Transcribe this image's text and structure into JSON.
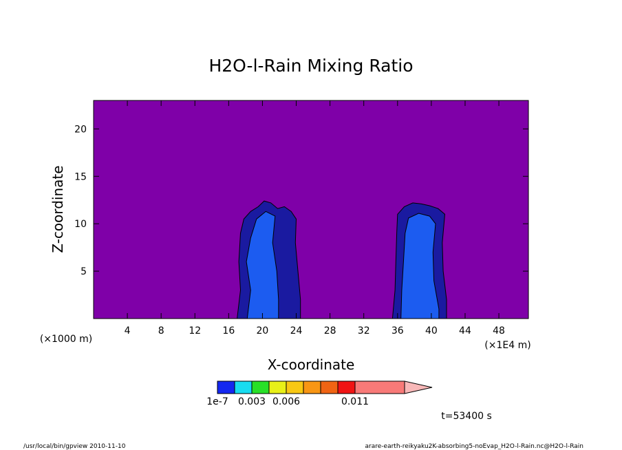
{
  "chart_data": {
    "type": "heatmap",
    "title": "H2O-l-Rain Mixing Ratio",
    "xlabel": "X-coordinate",
    "ylabel": "Z-coordinate",
    "x_unit_left": "(×1000 m)",
    "x_unit_right": "(×1E4 m)",
    "xlim": [
      0,
      51.5
    ],
    "ylim": [
      0,
      23
    ],
    "x_ticks": [
      4,
      8,
      12,
      16,
      20,
      24,
      28,
      32,
      36,
      40,
      44,
      48
    ],
    "y_ticks": [
      5,
      10,
      15,
      20
    ],
    "background_color": "#7f00a8",
    "regions": [
      {
        "name": "cell-1",
        "levels": [
          {
            "color": "#1a1aa0",
            "points": [
              [
                17,
                0
              ],
              [
                17.4,
                3
              ],
              [
                17.2,
                6
              ],
              [
                17.4,
                9
              ],
              [
                17.8,
                10.5
              ],
              [
                18.6,
                11.3
              ],
              [
                19.5,
                11.8
              ],
              [
                20.2,
                12.4
              ],
              [
                21,
                12.2
              ],
              [
                21.8,
                11.6
              ],
              [
                22.6,
                11.8
              ],
              [
                23.4,
                11.3
              ],
              [
                24,
                10.5
              ],
              [
                23.9,
                8
              ],
              [
                24.2,
                5
              ],
              [
                24.5,
                2
              ],
              [
                24.5,
                0
              ]
            ]
          },
          {
            "color": "#1c5cf0",
            "points": [
              [
                18.2,
                0
              ],
              [
                18.6,
                3
              ],
              [
                18.1,
                6
              ],
              [
                18.6,
                8.5
              ],
              [
                19.3,
                10.5
              ],
              [
                20.4,
                11.3
              ],
              [
                21.5,
                10.8
              ],
              [
                21.2,
                8
              ],
              [
                21.7,
                5
              ],
              [
                21.9,
                2
              ],
              [
                21.9,
                0
              ]
            ]
          }
        ]
      },
      {
        "name": "cell-2",
        "levels": [
          {
            "color": "#1a1aa0",
            "points": [
              [
                35.4,
                0
              ],
              [
                35.7,
                3
              ],
              [
                35.8,
                6
              ],
              [
                35.9,
                9
              ],
              [
                36,
                11
              ],
              [
                36.8,
                11.8
              ],
              [
                37.8,
                12.2
              ],
              [
                38.8,
                12.1
              ],
              [
                39.8,
                11.9
              ],
              [
                40.8,
                11.6
              ],
              [
                41.6,
                11
              ],
              [
                41.3,
                8
              ],
              [
                41.4,
                5
              ],
              [
                41.8,
                2
              ],
              [
                41.8,
                0
              ]
            ]
          },
          {
            "color": "#1c5cf0",
            "points": [
              [
                36.4,
                0
              ],
              [
                36.5,
                3
              ],
              [
                36.7,
                6
              ],
              [
                36.9,
                9
              ],
              [
                37.3,
                10.6
              ],
              [
                38.5,
                11.1
              ],
              [
                39.8,
                10.8
              ],
              [
                40.5,
                10
              ],
              [
                40.2,
                7
              ],
              [
                40.3,
                4
              ],
              [
                40.9,
                1
              ],
              [
                40.9,
                0
              ]
            ]
          }
        ]
      }
    ],
    "colorbar": {
      "colors": [
        "#1428f0",
        "#18dcf0",
        "#28e028",
        "#e8f018",
        "#f8c814",
        "#f89614",
        "#f06414",
        "#f01414",
        "#f87a78",
        "#f8b8b8"
      ],
      "labels": [
        "1e-7",
        "0.003",
        "0.006",
        "0.011"
      ],
      "label_positions": [
        0,
        2,
        4,
        8
      ]
    },
    "time_label": "t=53400 s"
  },
  "footer": {
    "left": "/usr/local/bin/gpview   2010-11-10",
    "right": "arare-earth-reikyaku2K-absorbing5-noEvap_H2O-l-Rain.nc@H2O-l-Rain"
  }
}
